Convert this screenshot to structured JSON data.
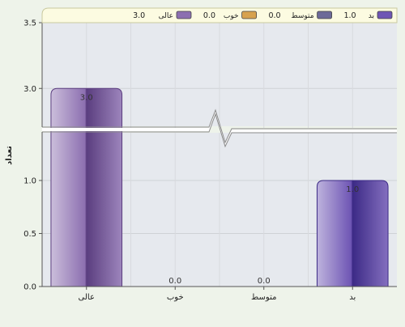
{
  "chart_data": {
    "type": "bar",
    "categories": [
      "عالی",
      "خوب",
      "متوسط",
      "بد"
    ],
    "values": [
      3.0,
      0.0,
      0.0,
      1.0
    ],
    "value_labels": [
      "3.0",
      "0.0",
      "0.0",
      "1.0"
    ],
    "ylabel": "تعداد",
    "y_ticks_lower": [
      "0.0",
      "0.5",
      "1.0"
    ],
    "y_ticks_upper": [
      "3.0",
      "3.5"
    ],
    "y_axis_break": [
      1.45,
      2.7
    ],
    "ylim": [
      0,
      3.5
    ],
    "grid": true,
    "legend": {
      "placement": "top",
      "entries": [
        {
          "label": "بد",
          "value": "1.0",
          "color": "#6e55b4"
        },
        {
          "label": "متوسط",
          "value": "0.0",
          "color": "#6d6a98"
        },
        {
          "label": "خوب",
          "value": "0.0",
          "color": "#d7a24f"
        },
        {
          "label": "عالی",
          "value": "3.0",
          "color": "#8c6fb0"
        }
      ]
    },
    "bar_colors": [
      "#8c6fb0",
      "#c7a04e",
      "#6d6a98",
      "#6e55b4"
    ],
    "bar_dark_colors": [
      "#5a3d7f",
      "#9a7228",
      "#45426a",
      "#3c2a86"
    ],
    "colors": {
      "background": "#eef3ea",
      "plot_area": "#e6e9ee",
      "legend_bg": "#fcfbe1",
      "legend_border": "#c9c9a0"
    }
  }
}
